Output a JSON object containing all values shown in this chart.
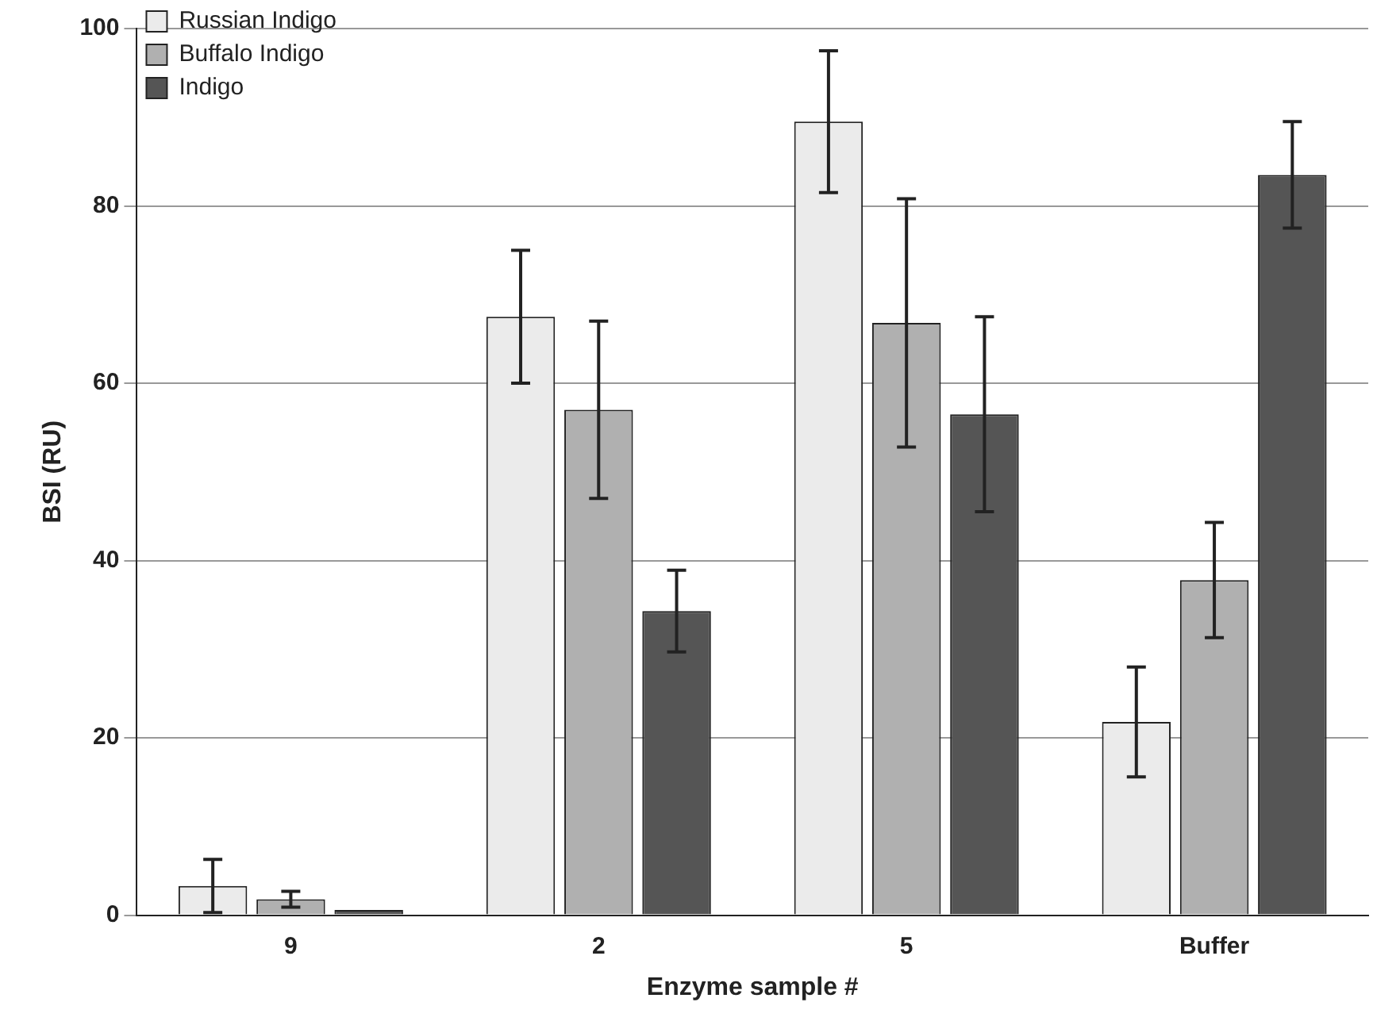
{
  "chart_data": {
    "type": "bar",
    "xlabel": "Enzyme sample #",
    "ylabel": "BSI (RU)",
    "categories": [
      "9",
      "2",
      "5",
      "Buffer"
    ],
    "series": [
      {
        "name": "Russian Indigo",
        "color": "#ebebeb",
        "values": [
          3.3,
          67.5,
          89.5,
          21.8
        ],
        "errors": [
          3,
          7.5,
          8,
          6.2
        ]
      },
      {
        "name": "Buffalo Indigo",
        "color": "#b0b0b0",
        "values": [
          1.8,
          57,
          66.8,
          37.8
        ],
        "errors": [
          0.9,
          10,
          14,
          6.5
        ]
      },
      {
        "name": "Indigo",
        "color": "#555555",
        "values": [
          0.6,
          34.3,
          56.5,
          83.5
        ],
        "errors": [
          null,
          4.6,
          11,
          6
        ]
      }
    ],
    "ylim": [
      0,
      100
    ],
    "yticks": [
      0,
      20,
      40,
      60,
      80,
      100
    ],
    "grid": "y",
    "legend": "top left"
  }
}
